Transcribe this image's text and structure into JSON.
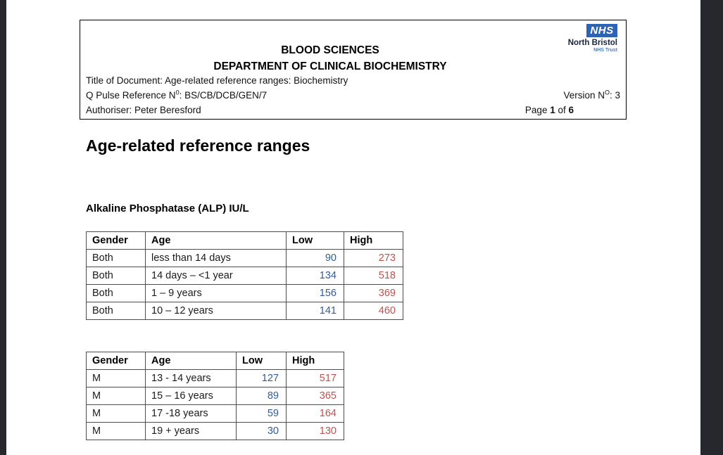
{
  "frame": {
    "bar_color": "#27272e"
  },
  "header_box": {
    "logo": {
      "nhs": "NHS",
      "org": "North Bristol",
      "trust": "NHS Trust",
      "nhs_blue": "#2e62b2"
    },
    "dept_line1": "BLOOD SCIENCES",
    "dept_line2": "DEPARTMENT OF CLINICAL BIOCHEMISTRY",
    "doc_title": "Title of Document: Age-related reference ranges: Biochemistry",
    "qpulse": {
      "pre": "Q Pulse Reference N",
      "sup": "0",
      "post": ": BS/CB/DCB/GEN/7"
    },
    "authoriser": "Authoriser: Peter Beresford",
    "version": {
      "pre": "Version N",
      "sup": "O",
      "post": ": 3"
    },
    "page": {
      "pre": "Page ",
      "current": "1",
      "mid": " of ",
      "total": "6"
    }
  },
  "content": {
    "main_heading": "Age-related reference ranges",
    "section_heading": "Alkaline Phosphatase (ALP) IU/L",
    "colors": {
      "low_text": "#2e5b9e",
      "high_text": "#c0504d",
      "table_border": "#4d4d4d"
    },
    "tables": [
      {
        "name": "alp-both-genders",
        "headers": [
          "Gender",
          "Age",
          "Low",
          "High"
        ],
        "rows": [
          [
            "Both",
            "less than 14 days",
            "90",
            "273"
          ],
          [
            "Both",
            "14 days – <1 year",
            "134",
            "518"
          ],
          [
            "Both",
            "1 – 9 years",
            "156",
            "369"
          ],
          [
            "Both",
            "10 – 12 years",
            "141",
            "460"
          ]
        ]
      },
      {
        "name": "alp-male",
        "headers": [
          "Gender",
          "Age",
          "Low",
          "High"
        ],
        "rows": [
          [
            "M",
            "13 - 14 years",
            "127",
            "517"
          ],
          [
            "M",
            "15 – 16 years",
            "89",
            "365"
          ],
          [
            "M",
            "17 -18 years",
            "59",
            "164"
          ],
          [
            "M",
            "19 + years",
            "30",
            "130"
          ]
        ]
      }
    ]
  }
}
